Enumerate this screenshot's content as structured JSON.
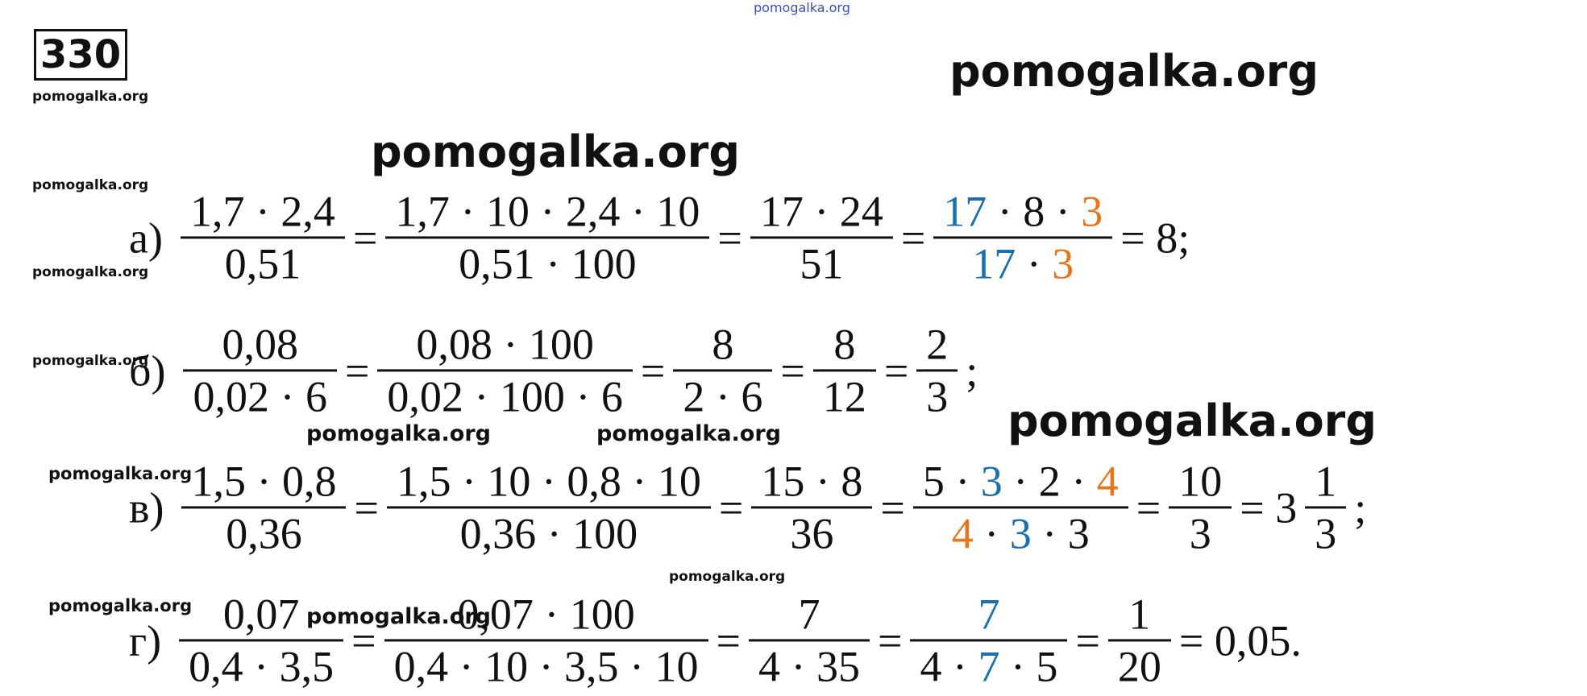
{
  "number": "330",
  "colors": {
    "blue": "#1a6fb0",
    "orange": "#e8741c"
  },
  "watermarks": [
    "pomogalka.org",
    "pomogalka.org",
    "pomogalka.org",
    "pomogalka.org",
    "pomogalka.org",
    "pomogalka.org",
    "pomogalka.org",
    "pomogalka.org",
    "pomogalka.org",
    "pomogalka.org",
    "pomogalka.org",
    "pomogalka.org",
    "pomogalka.org",
    "pomogalka.org"
  ],
  "rows": [
    {
      "label": "а)",
      "items": [
        {
          "num": [
            {
              "t": "1,7 · 2,4"
            }
          ],
          "den": [
            {
              "t": "0,51"
            }
          ]
        },
        "=",
        {
          "num": [
            {
              "t": "1,7 · 10 · 2,4 · 10"
            }
          ],
          "den": [
            {
              "t": "0,51 · 100"
            }
          ]
        },
        "=",
        {
          "num": [
            {
              "t": "17 · 24"
            }
          ],
          "den": [
            {
              "t": "51"
            }
          ]
        },
        "=",
        {
          "num": [
            {
              "t": "17",
              "c": "blue"
            },
            {
              "t": " · 8 · "
            },
            {
              "t": "3",
              "c": "orange"
            }
          ],
          "den": [
            {
              "t": "17",
              "c": "blue"
            },
            {
              "t": " · "
            },
            {
              "t": "3",
              "c": "orange"
            }
          ]
        },
        "= 8;"
      ]
    },
    {
      "label": "б)",
      "items": [
        {
          "num": [
            {
              "t": "0,08"
            }
          ],
          "den": [
            {
              "t": "0,02 · 6"
            }
          ]
        },
        "=",
        {
          "num": [
            {
              "t": "0,08 · 100"
            }
          ],
          "den": [
            {
              "t": "0,02 · 100 · 6"
            }
          ]
        },
        "=",
        {
          "num": [
            {
              "t": "8"
            }
          ],
          "den": [
            {
              "t": "2 · 6"
            }
          ]
        },
        "=",
        {
          "num": [
            {
              "t": "8"
            }
          ],
          "den": [
            {
              "t": "12"
            }
          ]
        },
        "=",
        {
          "num": [
            {
              "t": "2"
            }
          ],
          "den": [
            {
              "t": "3"
            }
          ]
        },
        ";"
      ]
    },
    {
      "label": "в)",
      "items": [
        {
          "num": [
            {
              "t": "1,5 · 0,8"
            }
          ],
          "den": [
            {
              "t": "0,36"
            }
          ]
        },
        "=",
        {
          "num": [
            {
              "t": "1,5 · 10 · 0,8 · 10"
            }
          ],
          "den": [
            {
              "t": "0,36 · 100"
            }
          ]
        },
        "=",
        {
          "num": [
            {
              "t": "15 · 8"
            }
          ],
          "den": [
            {
              "t": "36"
            }
          ]
        },
        "=",
        {
          "num": [
            {
              "t": "5 · "
            },
            {
              "t": "3",
              "c": "blue"
            },
            {
              "t": " · 2 · "
            },
            {
              "t": "4",
              "c": "orange"
            }
          ],
          "den": [
            {
              "t": "4",
              "c": "orange"
            },
            {
              "t": " · "
            },
            {
              "t": "3",
              "c": "blue"
            },
            {
              "t": " · 3"
            }
          ]
        },
        "=",
        {
          "num": [
            {
              "t": "10"
            }
          ],
          "den": [
            {
              "t": "3"
            }
          ]
        },
        "= 3",
        {
          "num": [
            {
              "t": "1"
            }
          ],
          "den": [
            {
              "t": "3"
            }
          ]
        },
        ";"
      ]
    },
    {
      "label": "г)",
      "items": [
        {
          "num": [
            {
              "t": "0,07"
            }
          ],
          "den": [
            {
              "t": "0,4 · 3,5"
            }
          ]
        },
        "=",
        {
          "num": [
            {
              "t": "0,07 · 100"
            }
          ],
          "den": [
            {
              "t": "0,4 · 10 · 3,5 · 10"
            }
          ]
        },
        "=",
        {
          "num": [
            {
              "t": "7"
            }
          ],
          "den": [
            {
              "t": "4 · 35"
            }
          ]
        },
        "=",
        {
          "num": [
            {
              "t": "7",
              "c": "blue"
            }
          ],
          "den": [
            {
              "t": "4 · "
            },
            {
              "t": "7",
              "c": "blue"
            },
            {
              "t": " · 5"
            }
          ]
        },
        "=",
        {
          "num": [
            {
              "t": "1"
            }
          ],
          "den": [
            {
              "t": "20"
            }
          ]
        },
        "= 0,05."
      ]
    }
  ]
}
